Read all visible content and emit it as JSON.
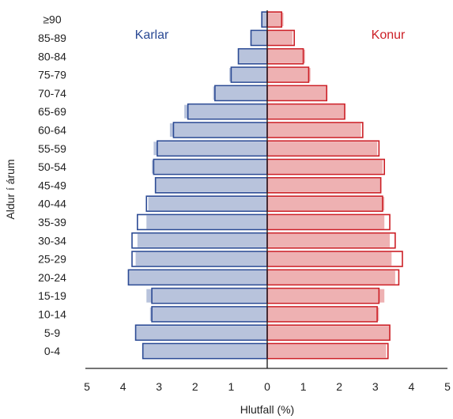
{
  "chart_data": {
    "type": "bar",
    "orientation": "horizontal-population-pyramid",
    "categories": [
      "0-4",
      "5-9",
      "10-14",
      "15-19",
      "20-24",
      "25-29",
      "30-34",
      "35-39",
      "40-44",
      "45-49",
      "50-54",
      "55-59",
      "60-64",
      "65-69",
      "70-74",
      "75-79",
      "80-84",
      "85-89",
      "≥90"
    ],
    "series": [
      {
        "name": "Karlar",
        "side": "left",
        "color": "#2b4a94",
        "fill": "#b8c3dc",
        "values": [
          3.45,
          3.65,
          3.2,
          3.2,
          3.85,
          3.75,
          3.75,
          3.6,
          3.35,
          3.1,
          3.15,
          3.05,
          2.6,
          2.2,
          1.45,
          1.0,
          0.8,
          0.45,
          0.15
        ],
        "shadow_values": [
          3.45,
          3.65,
          3.25,
          3.35,
          3.85,
          3.65,
          3.6,
          3.35,
          3.3,
          3.1,
          3.2,
          3.15,
          2.7,
          2.3,
          1.5,
          1.05,
          0.8,
          0.45,
          0.15
        ]
      },
      {
        "name": "Konur",
        "side": "right",
        "color": "#cc1f26",
        "fill": "#eeb1b2",
        "values": [
          3.35,
          3.4,
          3.05,
          3.1,
          3.65,
          3.75,
          3.55,
          3.4,
          3.2,
          3.15,
          3.25,
          3.1,
          2.65,
          2.15,
          1.65,
          1.15,
          1.0,
          0.75,
          0.4
        ],
        "shadow_values": [
          3.3,
          3.4,
          3.1,
          3.25,
          3.55,
          3.45,
          3.4,
          3.25,
          3.25,
          3.15,
          3.2,
          3.05,
          2.6,
          2.15,
          1.65,
          1.2,
          1.05,
          0.7,
          0.45
        ]
      }
    ],
    "xticks": [
      "5",
      "4",
      "3",
      "2",
      "1",
      "0",
      "1",
      "2",
      "3",
      "4",
      "5"
    ],
    "xlim": [
      -5,
      5
    ],
    "xlabel": "Hlutfall (%)",
    "ylabel": "Aldur í árum",
    "grid": false
  }
}
